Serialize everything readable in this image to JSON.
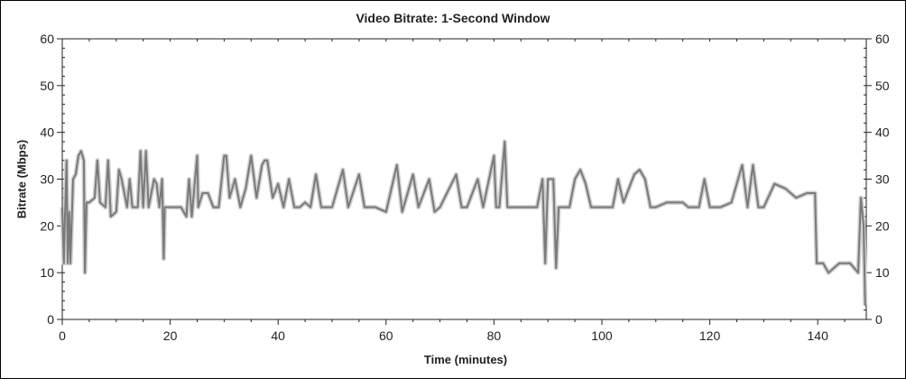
{
  "chart_data": {
    "type": "line",
    "title": "Video Bitrate: 1-Second Window",
    "xlabel": "Time (minutes)",
    "ylabel": "Bitrate (Mbps)",
    "xlim": [
      0,
      149
    ],
    "ylim": [
      0,
      60
    ],
    "xticks": [
      0,
      20,
      40,
      60,
      80,
      100,
      120,
      140
    ],
    "yticks": [
      0,
      10,
      20,
      30,
      40,
      50,
      60
    ],
    "right_axis_ticks": [
      0,
      10,
      20,
      30,
      40,
      50,
      60
    ],
    "grid": false,
    "legend": "none",
    "line_color": "#7a7a7a",
    "band_color": "#cfcfcf",
    "series": [
      {
        "x": [
          0,
          0.3,
          0.5,
          0.8,
          1,
          1.3,
          1.5,
          2,
          2.5,
          3,
          3.5,
          4,
          4.2,
          4.5,
          5,
          6,
          6.5,
          7,
          8,
          8.5,
          9,
          10,
          10.5,
          11,
          12,
          12.5,
          13,
          14,
          14.5,
          15,
          15.5,
          16,
          17,
          17.5,
          18,
          18.5,
          18.8,
          19,
          20,
          21,
          22,
          23,
          23.5,
          24,
          25,
          25.2,
          26,
          27,
          28,
          29,
          30,
          30.4,
          31,
          32,
          33,
          34,
          35,
          36,
          37,
          37.5,
          38,
          39,
          40,
          41,
          42,
          43,
          44,
          45,
          46,
          47,
          48,
          50,
          52,
          53,
          55,
          56,
          58,
          60,
          62,
          63,
          65,
          66,
          68,
          69,
          70,
          73,
          74,
          75,
          77,
          78,
          80,
          80.4,
          81,
          82,
          82.5,
          84,
          86,
          88,
          89,
          89.5,
          90,
          91,
          91.5,
          92,
          94,
          95,
          96,
          97,
          98,
          100,
          102,
          103,
          104,
          106,
          107,
          108,
          109,
          110,
          112,
          115,
          116,
          118,
          119,
          120,
          122,
          124,
          126,
          127,
          128,
          129,
          130,
          132,
          134,
          136,
          138,
          139.5,
          139.8,
          141,
          142,
          144,
          146,
          147.5,
          148,
          148.5,
          148.8
        ],
        "y": [
          24,
          12,
          22,
          34,
          12,
          23,
          12,
          30,
          31,
          35,
          36,
          34,
          10,
          25,
          25,
          26,
          34,
          25,
          24,
          34,
          22,
          23,
          32,
          30,
          24,
          30,
          24,
          24,
          36,
          24,
          36,
          24,
          30,
          29,
          24,
          30,
          13,
          24,
          24,
          24,
          24,
          22,
          30,
          22,
          35,
          24,
          27,
          27,
          24,
          24,
          35,
          35,
          26,
          30,
          24,
          28,
          35,
          26,
          33,
          34,
          34,
          26,
          29,
          24,
          30,
          24,
          24,
          25,
          24,
          31,
          24,
          24,
          32,
          24,
          31,
          24,
          24,
          23,
          33,
          23,
          31,
          24,
          30,
          23,
          24,
          31,
          24,
          24,
          30,
          24,
          35,
          24,
          24,
          38,
          24,
          24,
          24,
          24,
          30,
          12,
          30,
          30,
          11,
          24,
          24,
          30,
          32,
          29,
          24,
          24,
          24,
          30,
          25,
          31,
          32,
          30,
          24,
          24,
          25,
          25,
          24,
          24,
          30,
          24,
          24,
          25,
          33,
          24,
          33,
          24,
          24,
          29,
          28,
          26,
          27,
          27,
          12,
          12,
          10,
          12,
          12,
          10,
          26,
          20,
          3
        ]
      }
    ]
  }
}
